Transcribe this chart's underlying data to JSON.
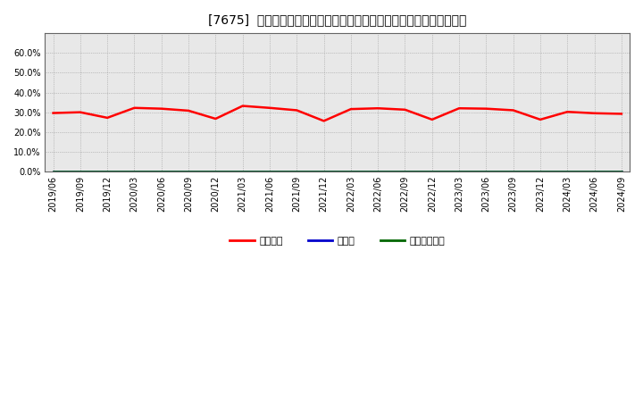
{
  "title": "[7675]  自己資本、のれん、繰延税金資産の総資産に対する比率の推移",
  "x_labels": [
    "2019/06",
    "2019/09",
    "2019/12",
    "2020/03",
    "2020/06",
    "2020/09",
    "2020/12",
    "2021/03",
    "2021/06",
    "2021/09",
    "2021/12",
    "2022/03",
    "2022/06",
    "2022/09",
    "2022/12",
    "2023/03",
    "2023/06",
    "2023/09",
    "2023/12",
    "2024/03",
    "2024/06",
    "2024/09"
  ],
  "equity_ratio": [
    0.296,
    0.3,
    0.272,
    0.322,
    0.318,
    0.308,
    0.267,
    0.332,
    0.322,
    0.31,
    0.256,
    0.316,
    0.32,
    0.313,
    0.263,
    0.32,
    0.318,
    0.31,
    0.263,
    0.302,
    0.295,
    0.292
  ],
  "noren_ratio": [
    0,
    0,
    0,
    0,
    0,
    0,
    0,
    0,
    0,
    0,
    0,
    0,
    0,
    0,
    0,
    0,
    0,
    0,
    0,
    0,
    0,
    0
  ],
  "deferred_tax_ratio": [
    0,
    0,
    0,
    0,
    0,
    0,
    0,
    0,
    0,
    0,
    0,
    0,
    0,
    0,
    0,
    0,
    0,
    0,
    0,
    0,
    0,
    0
  ],
  "equity_color": "#ff0000",
  "noren_color": "#0000cc",
  "deferred_tax_color": "#006600",
  "bg_color": "#ffffff",
  "plot_bg_color": "#e8e8e8",
  "grid_color": "#999999",
  "ylim": [
    0.0,
    0.7
  ],
  "yticks": [
    0.0,
    0.1,
    0.2,
    0.3,
    0.4,
    0.5,
    0.6
  ],
  "legend_labels": [
    "自己資本",
    "のれん",
    "繰延税金資産"
  ],
  "title_fontsize": 10,
  "tick_fontsize": 7,
  "legend_fontsize": 8
}
